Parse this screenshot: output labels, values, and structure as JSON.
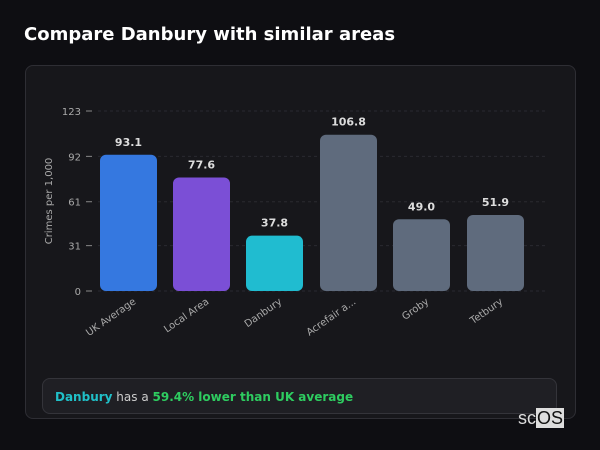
{
  "title": "Compare Danbury with similar areas",
  "chart_data": {
    "type": "bar",
    "categories": [
      "UK Average",
      "Local Area",
      "Danbury",
      "Acrefair a...",
      "Groby",
      "Tetbury"
    ],
    "values": [
      93.1,
      77.6,
      37.8,
      106.8,
      49.0,
      51.9
    ],
    "value_labels": [
      "93.1",
      "77.6",
      "37.8",
      "106.8",
      "49.0",
      "51.9"
    ],
    "colors": [
      "#3578e0",
      "#7b4fd6",
      "#20bcd0",
      "#5f6b7d",
      "#5f6b7d",
      "#5f6b7d"
    ],
    "ylabel": "Crimes per 1,000",
    "yticks": [
      0,
      31,
      61,
      92,
      123
    ],
    "ylim": [
      0,
      123
    ],
    "grid": true
  },
  "summary": {
    "area": "Danbury",
    "middle": " has a ",
    "highlight": "59.4% lower than UK average"
  },
  "logo": {
    "prefix": "sc",
    "suffix": "OS"
  }
}
